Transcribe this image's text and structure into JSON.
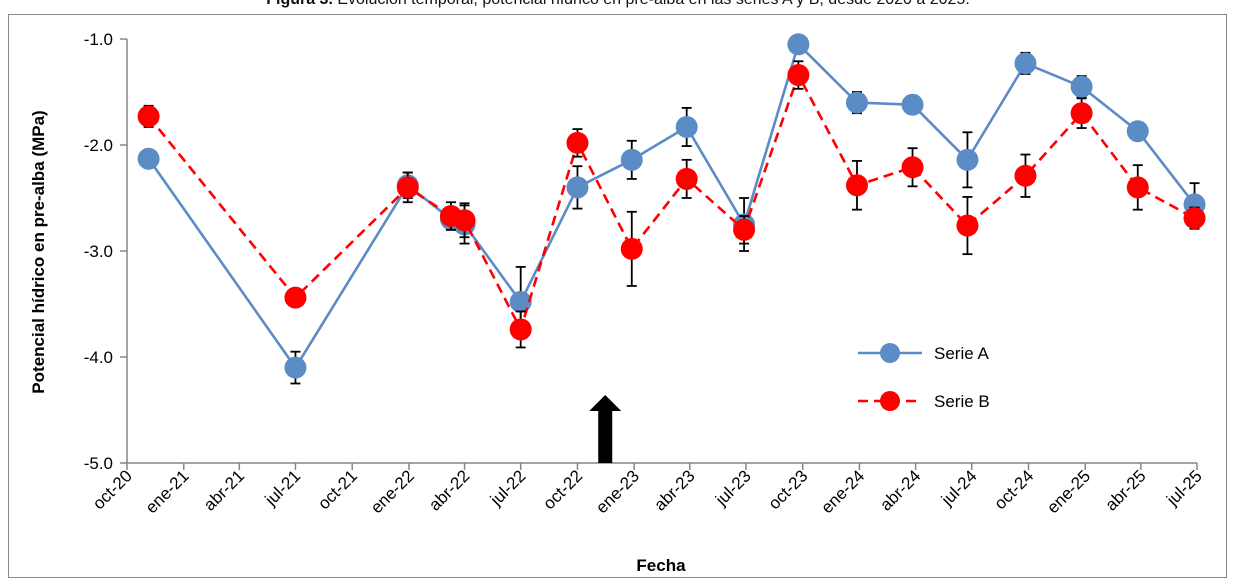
{
  "caption": {
    "label": "Figura 3.",
    "text": "Evolución temporal, potencial hídrico en pre-alba en las series A y B, desde 2020 a 2025."
  },
  "chart_data": {
    "type": "line",
    "title": "",
    "xlabel": "Fecha",
    "ylabel": "Potencial hídrico en pre-alba (MPa)",
    "ylim": [
      -5.0,
      -1.0
    ],
    "yticks": [
      -1.0,
      -2.0,
      -3.0,
      -4.0,
      -5.0
    ],
    "ytick_labels": [
      "-1.0",
      "-2.0",
      "-3.0",
      "-4.0",
      "-5.0"
    ],
    "x_axis_type": "date",
    "xlim": [
      "2020-10-01",
      "2025-07-01"
    ],
    "xticks": [
      "2020-10-01",
      "2021-01-01",
      "2021-04-01",
      "2021-07-01",
      "2021-10-01",
      "2022-01-01",
      "2022-04-01",
      "2022-07-01",
      "2022-10-01",
      "2023-01-01",
      "2023-04-01",
      "2023-07-01",
      "2023-10-01",
      "2024-01-01",
      "2024-04-01",
      "2024-07-01",
      "2024-10-01",
      "2025-01-01",
      "2025-04-01",
      "2025-07-01"
    ],
    "xtick_labels": [
      "oct-20",
      "ene-21",
      "abr-21",
      "jul-21",
      "oct-21",
      "ene-22",
      "abr-22",
      "jul-22",
      "oct-22",
      "ene-23",
      "abr-23",
      "jul-23",
      "oct-23",
      "ene-24",
      "abr-24",
      "jul-24",
      "oct-24",
      "ene-25",
      "abr-25",
      "jul-25"
    ],
    "grid": false,
    "legend_position": "bottom-right",
    "series": [
      {
        "name": "Serie A",
        "color": "#5b8cc6",
        "line_style": "solid",
        "points": [
          {
            "x": "2020-11-05",
            "y": -2.13,
            "err": 0
          },
          {
            "x": "2021-07-01",
            "y": -4.1,
            "err": 0.15
          },
          {
            "x": "2021-12-30",
            "y": -2.38,
            "err": 0.12
          },
          {
            "x": "2022-03-10",
            "y": -2.7,
            "err": 0.1
          },
          {
            "x": "2022-04-01",
            "y": -2.75,
            "err": 0.18
          },
          {
            "x": "2022-07-01",
            "y": -3.48,
            "err": 0.33
          },
          {
            "x": "2022-10-01",
            "y": -2.4,
            "err": 0.2
          },
          {
            "x": "2022-12-28",
            "y": -2.14,
            "err": 0.18
          },
          {
            "x": "2023-03-27",
            "y": -1.83,
            "err": 0.18
          },
          {
            "x": "2023-06-28",
            "y": -2.75,
            "err": 0.25
          },
          {
            "x": "2023-09-24",
            "y": -1.05,
            "err": 0
          },
          {
            "x": "2023-12-28",
            "y": -1.6,
            "err": 0.1
          },
          {
            "x": "2024-03-27",
            "y": -1.62,
            "err": 0
          },
          {
            "x": "2024-06-24",
            "y": -2.14,
            "err": 0.26
          },
          {
            "x": "2024-09-26",
            "y": -1.23,
            "err": 0.1
          },
          {
            "x": "2024-12-26",
            "y": -1.45,
            "err": 0.1
          },
          {
            "x": "2025-03-27",
            "y": -1.87,
            "err": 0
          },
          {
            "x": "2025-06-27",
            "y": -2.56,
            "err": 0.2
          }
        ]
      },
      {
        "name": "Serie B",
        "color": "#ff0000",
        "line_style": "dashed",
        "points": [
          {
            "x": "2020-11-05",
            "y": -1.73,
            "err": 0.1
          },
          {
            "x": "2021-07-01",
            "y": -3.44,
            "err": 0
          },
          {
            "x": "2021-12-30",
            "y": -2.4,
            "err": 0.14
          },
          {
            "x": "2022-03-10",
            "y": -2.67,
            "err": 0.13
          },
          {
            "x": "2022-04-01",
            "y": -2.71,
            "err": 0.16
          },
          {
            "x": "2022-07-01",
            "y": -3.74,
            "err": 0.17
          },
          {
            "x": "2022-10-01",
            "y": -1.98,
            "err": 0.13
          },
          {
            "x": "2022-12-28",
            "y": -2.98,
            "err": 0.35
          },
          {
            "x": "2023-03-27",
            "y": -2.32,
            "err": 0.18
          },
          {
            "x": "2023-06-28",
            "y": -2.8,
            "err": 0.13
          },
          {
            "x": "2023-09-24",
            "y": -1.34,
            "err": 0.13
          },
          {
            "x": "2023-12-28",
            "y": -2.38,
            "err": 0.23
          },
          {
            "x": "2024-03-27",
            "y": -2.21,
            "err": 0.18
          },
          {
            "x": "2024-06-24",
            "y": -2.76,
            "err": 0.27
          },
          {
            "x": "2024-09-26",
            "y": -2.29,
            "err": 0.2
          },
          {
            "x": "2024-12-26",
            "y": -1.7,
            "err": 0.14
          },
          {
            "x": "2025-03-27",
            "y": -2.4,
            "err": 0.21
          },
          {
            "x": "2025-06-27",
            "y": -2.69,
            "err": 0.1
          }
        ]
      }
    ],
    "annotations": [
      {
        "type": "arrow",
        "direction": "up",
        "x": "2022-11-15",
        "color": "#000000"
      }
    ]
  }
}
